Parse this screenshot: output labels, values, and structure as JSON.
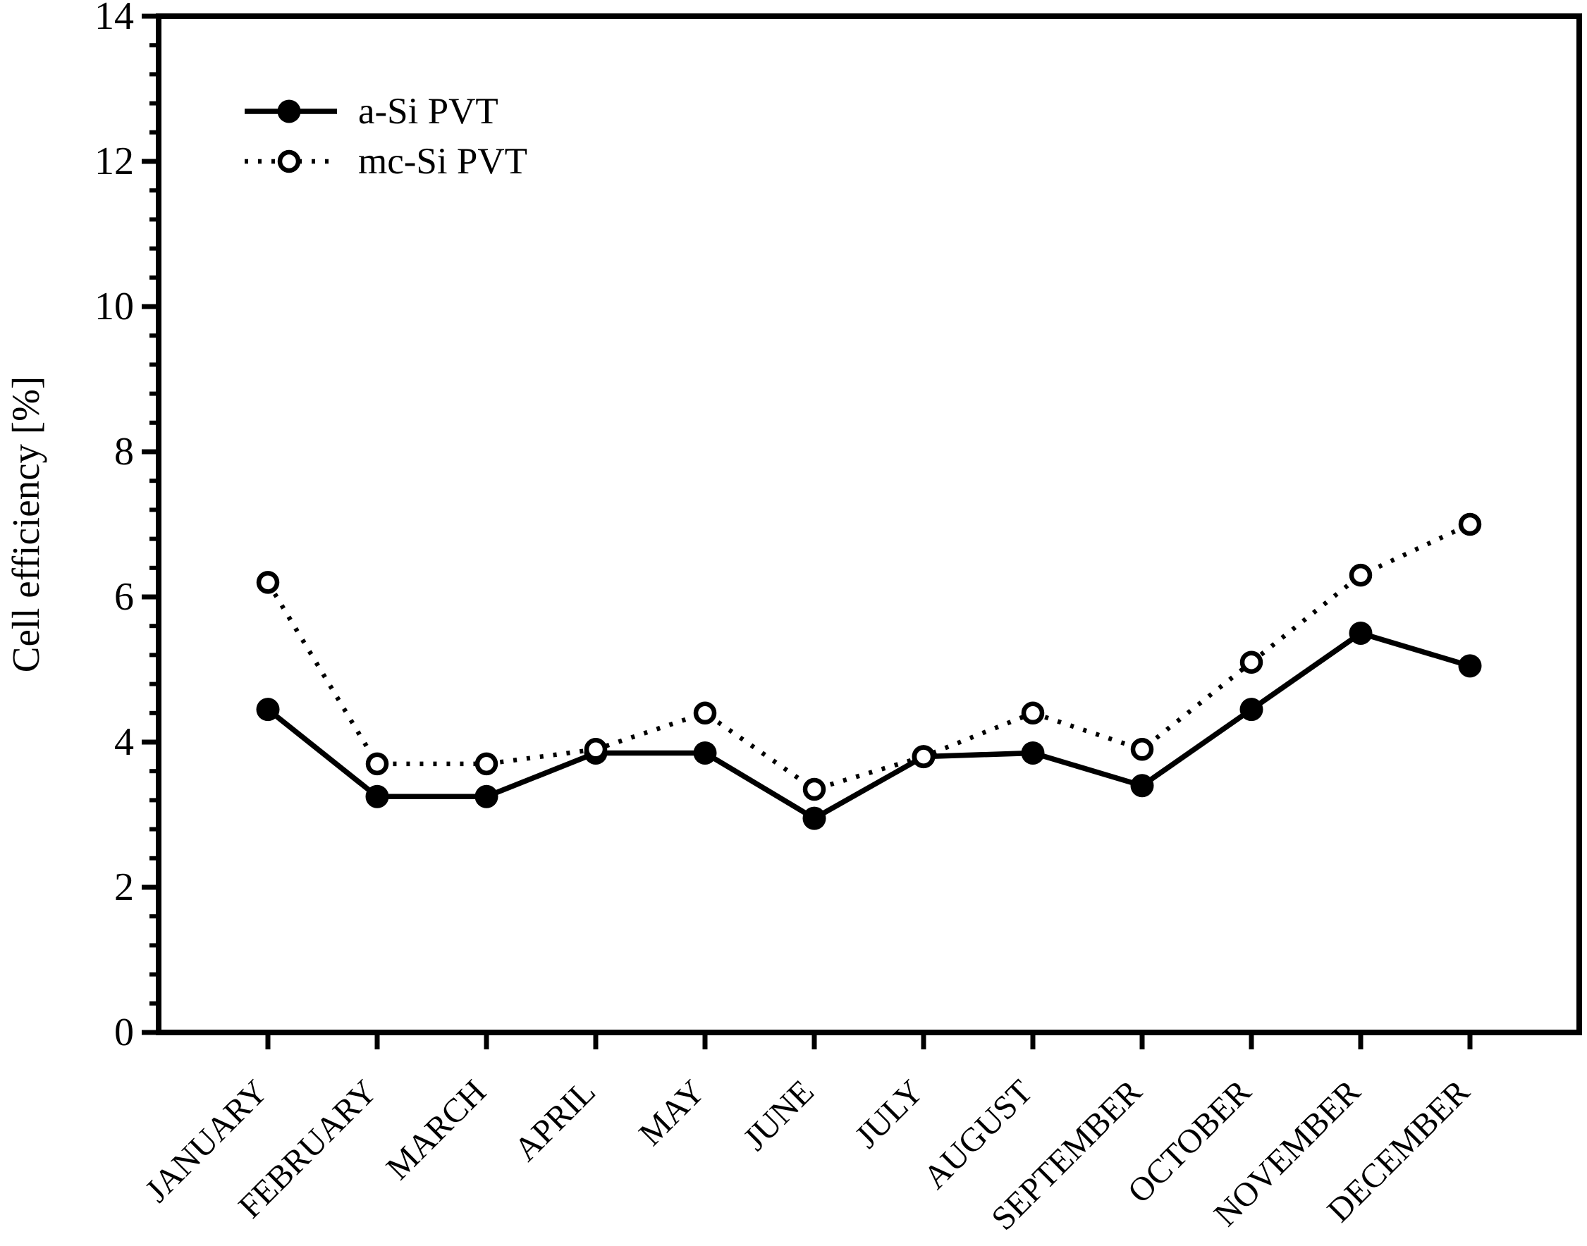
{
  "figure": {
    "paper_color": "#ffffff",
    "ink_color": "#000000"
  },
  "legend": {
    "entries": [
      {
        "label": "a-Si PVT",
        "marker": "filled-circle-icon",
        "line_style": "solid"
      },
      {
        "label": "mc-Si PVT",
        "marker": "open-circle-icon",
        "line_style": "dotted"
      }
    ]
  },
  "chart_data": {
    "type": "line",
    "title": "",
    "xlabel": "",
    "ylabel": "Cell efficiency [%]",
    "categories": [
      "JANUARY",
      "FEBRUARY",
      "MARCH",
      "APRIL",
      "MAY",
      "JUNE",
      "JULY",
      "AUGUST",
      "SEPTEMBER",
      "OCTOBER",
      "NOVEMBER",
      "DECEMBER"
    ],
    "series": [
      {
        "name": "a-Si PVT",
        "marker": "filled-circle",
        "line_style": "solid",
        "values": [
          4.45,
          3.25,
          3.25,
          3.85,
          3.85,
          2.95,
          3.8,
          3.85,
          3.4,
          4.45,
          5.5,
          5.05
        ]
      },
      {
        "name": "mc-Si PVT",
        "marker": "open-circle",
        "line_style": "dotted",
        "values": [
          6.2,
          3.7,
          3.7,
          3.9,
          4.4,
          3.35,
          3.8,
          4.4,
          3.9,
          5.1,
          6.3,
          7.0
        ]
      }
    ],
    "ylim": [
      0,
      14
    ],
    "y_major_step": 2,
    "y_minor_step": 0.4,
    "y_tick_labels": [
      "0",
      "2",
      "4",
      "6",
      "8",
      "10",
      "12",
      "14"
    ],
    "grid": false,
    "legend_position": "inside-upper-left"
  }
}
